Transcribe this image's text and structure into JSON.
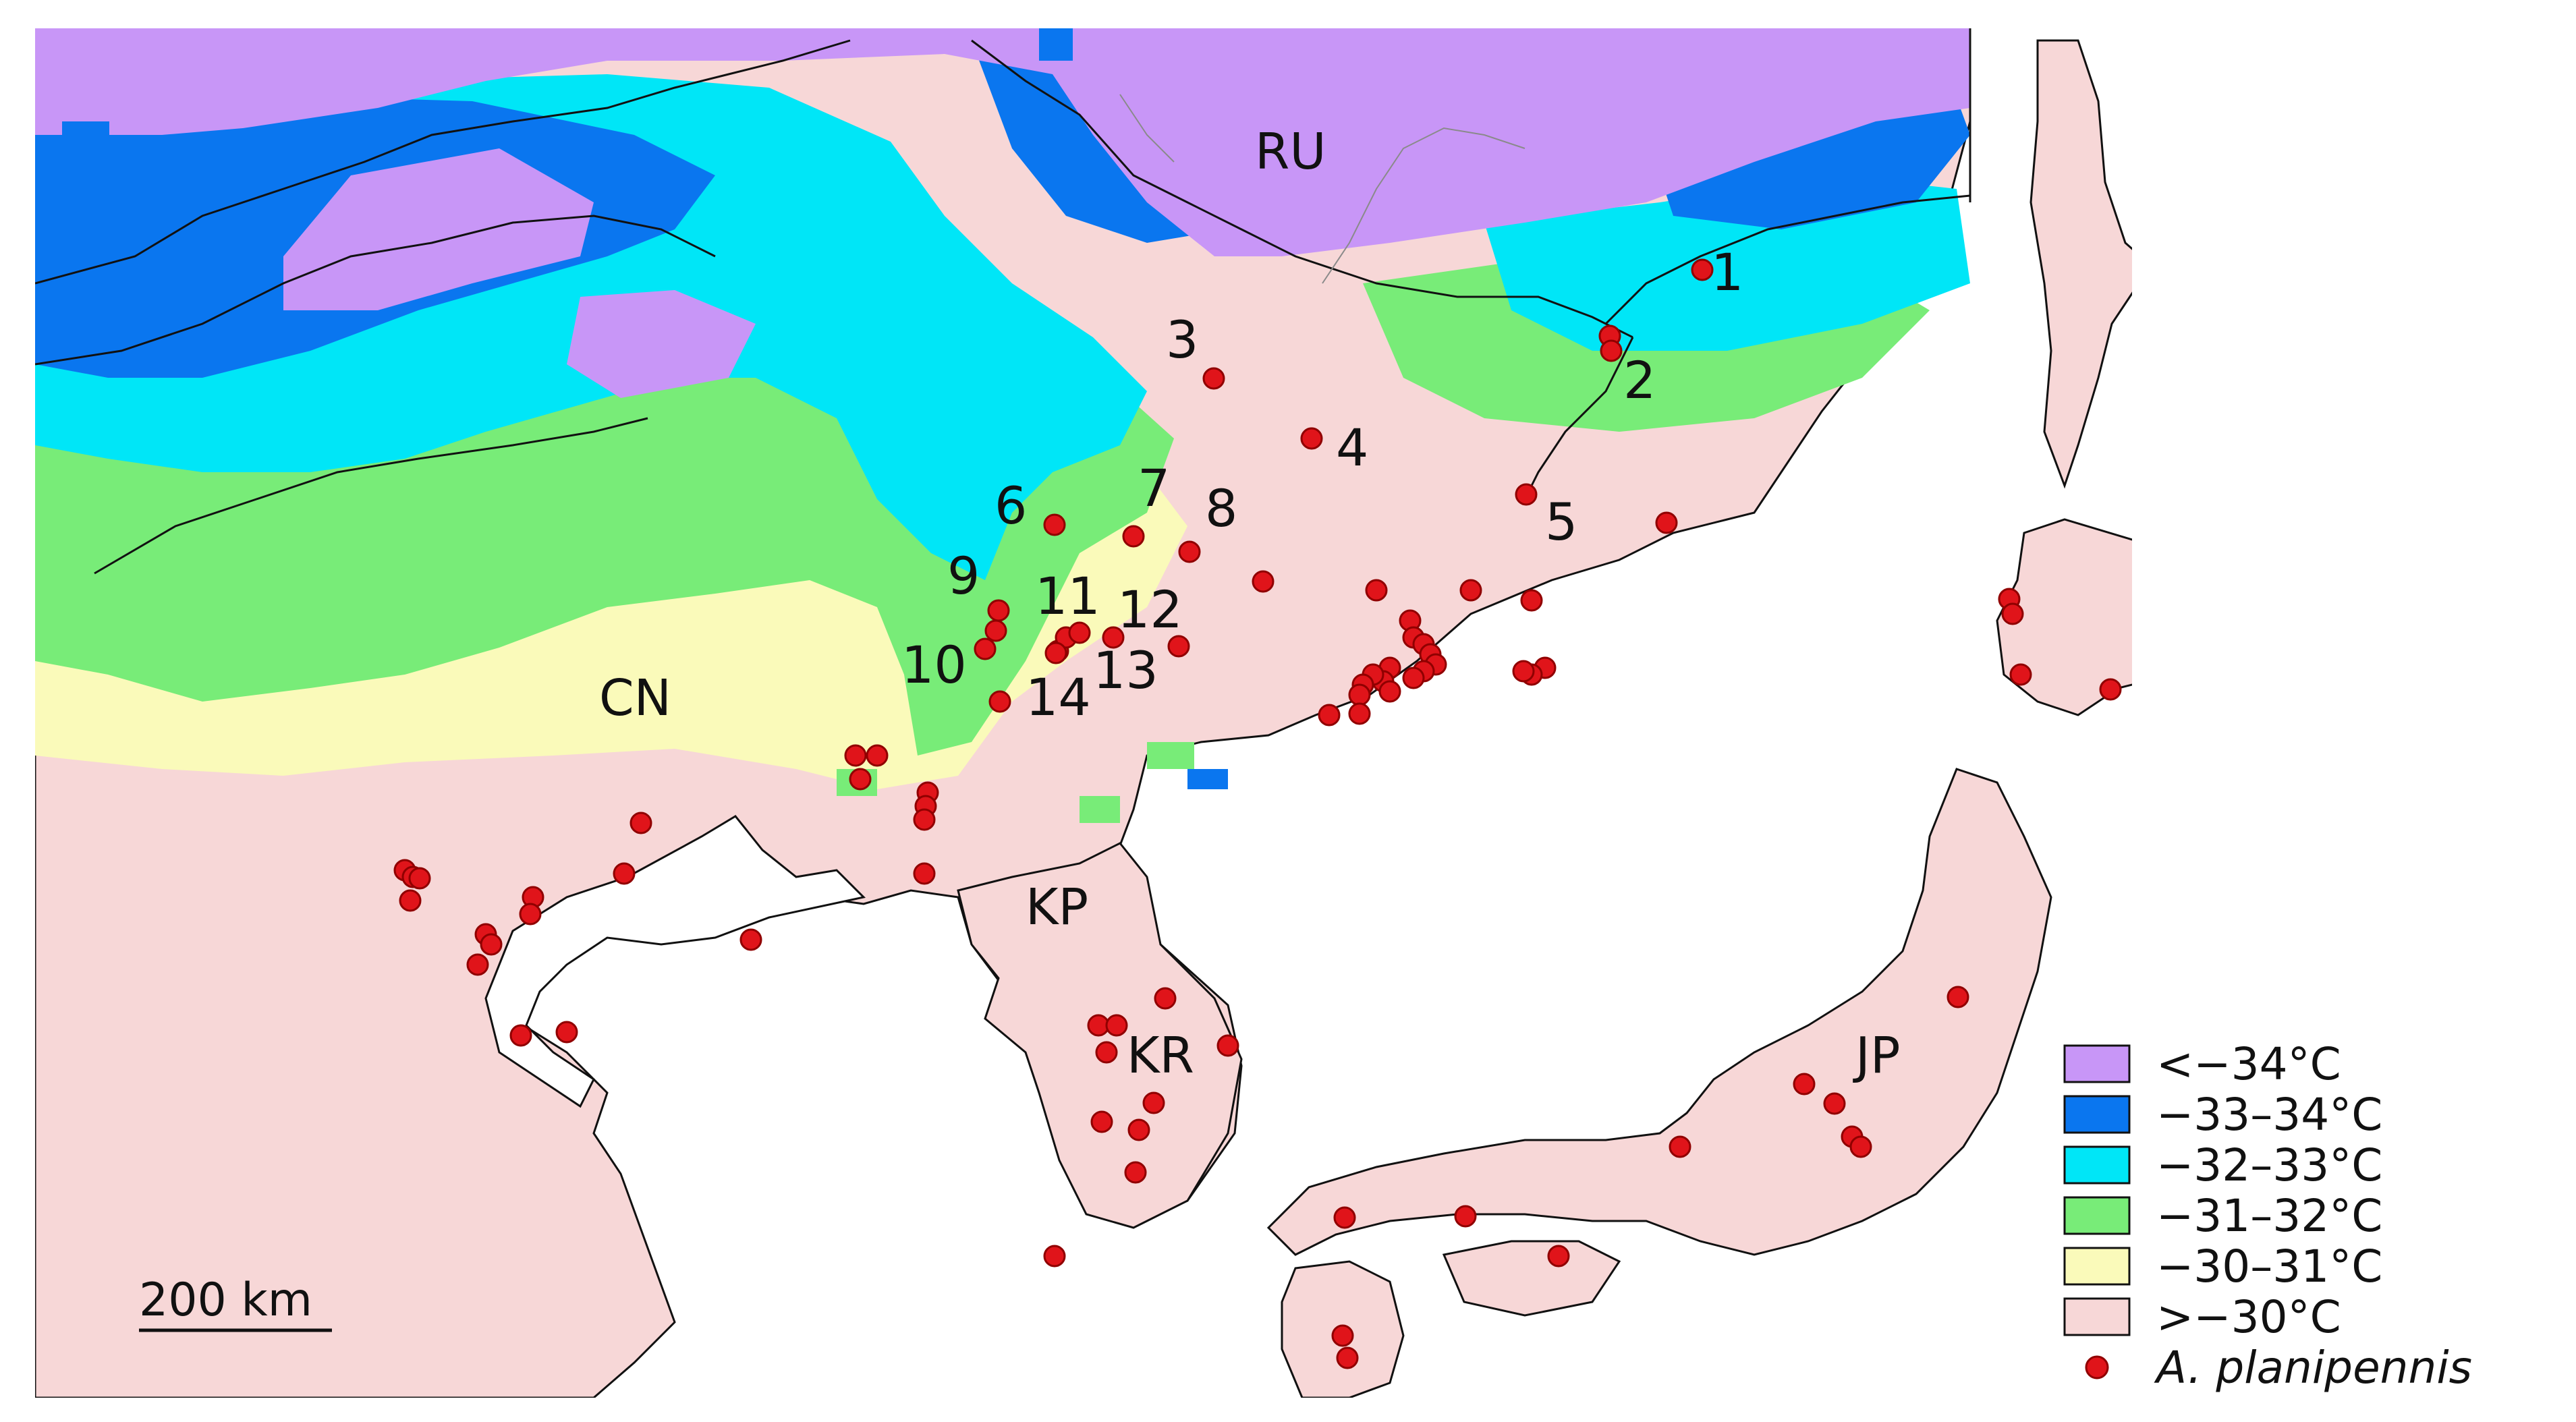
{
  "map": {
    "country_labels": [
      "RU",
      "CN",
      "KP",
      "KR",
      "JP"
    ],
    "site_labels": [
      "1",
      "2",
      "3",
      "4",
      "5",
      "6",
      "7",
      "8",
      "9",
      "10",
      "11",
      "12",
      "13",
      "14"
    ],
    "scale_bar": {
      "label": "200 km"
    },
    "legend": {
      "items": [
        {
          "label": "<−34°C",
          "color": "#c896f7"
        },
        {
          "label": "−33–34°C",
          "color": "#0a76ef"
        },
        {
          "label": "−32–33°C",
          "color": "#00e6f7"
        },
        {
          "label": "−31–32°C",
          "color": "#78ec78"
        },
        {
          "label": "−30–31°C",
          "color": "#fafaba"
        },
        {
          "label": ">−30°C",
          "color": "#f7d7d7"
        }
      ],
      "species": "A. planipennis",
      "species_color": "#e0141a"
    }
  }
}
